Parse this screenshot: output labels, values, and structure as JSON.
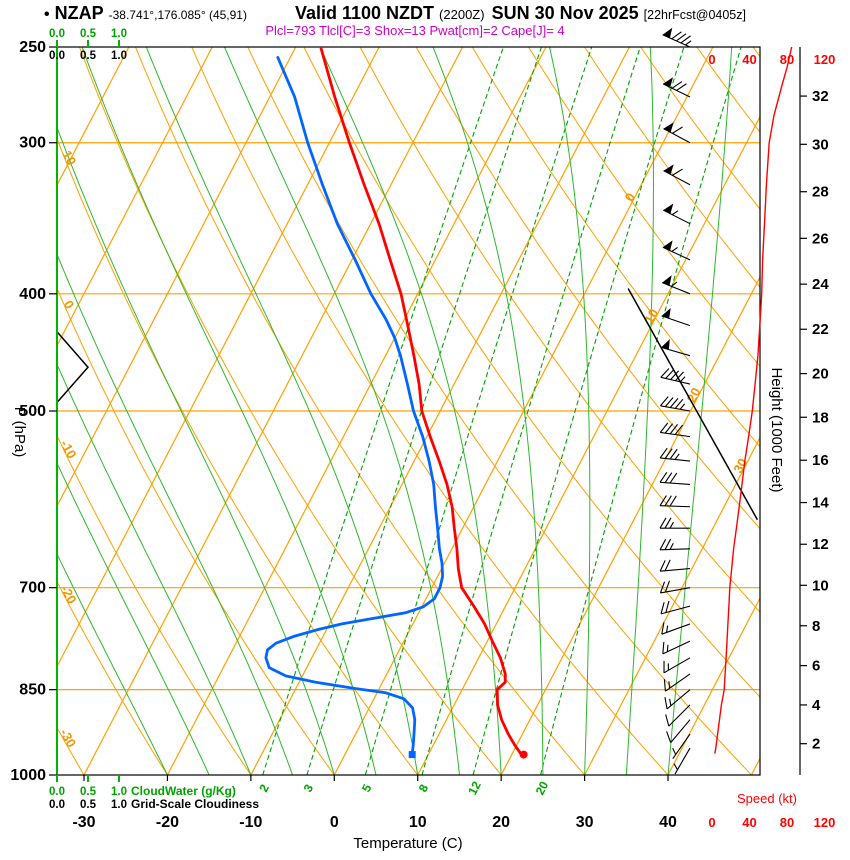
{
  "header": {
    "bullet": "•",
    "station": "NZAP",
    "coords": "-38.741°,176.085° (45,91)",
    "valid": "Valid 1100 NZDT",
    "valid_zulu": "(2200Z)",
    "valid_date": "SUN 30 Nov 2025",
    "fcst": "[22hrFcst@0405z]",
    "params": "Plcl=793 Tlcl[C]=3 Shox=13 Pwat[cm]=2 Cape[J]= 4"
  },
  "colors": {
    "grid_orange": "#ffa000",
    "green": "#00a300",
    "bright_green": "#00b400",
    "red": "#ff0000",
    "blue": "#0066ff",
    "magenta": "#cc00cc",
    "black": "#000000"
  },
  "chart_data": {
    "type": "line",
    "subtype": "skew-t log-p sounding",
    "axes": {
      "pressure": {
        "label": "P (hPa)",
        "scale": "log",
        "range": [
          250,
          1000
        ],
        "ticks": [
          250,
          300,
          400,
          500,
          700,
          850,
          1000
        ]
      },
      "temperature": {
        "label": "Temperature (C)",
        "unit": "C",
        "ticks": [
          -30,
          -20,
          -10,
          0,
          10,
          20,
          30,
          40
        ]
      },
      "height": {
        "label": "Height (1000 Feet)",
        "ticks": [
          2,
          4,
          6,
          8,
          10,
          12,
          14,
          16,
          18,
          20,
          22,
          24,
          26,
          28,
          30,
          32
        ]
      },
      "speed": {
        "label": "Speed (kt)",
        "ticks": [
          0,
          40,
          80,
          120
        ]
      },
      "cloudwater": {
        "label": "CloudWater (g/Kg)",
        "ticks": [
          "0.0",
          "0.5",
          "1.0"
        ]
      },
      "cloudiness": {
        "label": "Grid-Scale Cloudiness",
        "ticks": [
          "0.0",
          "0.5",
          "1.0"
        ]
      }
    },
    "grid": {
      "isobar_lines": [
        300,
        400,
        500,
        700,
        850
      ],
      "isotherm_step": 10,
      "isotherm_range": [
        -80,
        50
      ],
      "dry_adiabat_step": 10,
      "dry_adiabat_range": [
        -40,
        140
      ],
      "moist_adiabat_step": 5,
      "moist_adiabat_range": [
        -20,
        40
      ],
      "mixing_ratio_values": [
        2,
        3,
        5,
        8,
        12,
        20
      ],
      "isotherm_labels": [
        {
          "label": "0",
          "t": 0,
          "p": 334
        },
        {
          "label": "10",
          "t": 10,
          "p": 419
        },
        {
          "label": "20",
          "t": 20,
          "p": 487
        },
        {
          "label": "30",
          "t": 30,
          "p": 557
        }
      ],
      "dry_adiabat_labels": [
        {
          "label": "10",
          "theta": 10
        },
        {
          "label": "0",
          "theta": 0
        },
        {
          "label": "-10",
          "theta": -10
        },
        {
          "label": "-20",
          "theta": -20
        },
        {
          "label": "-30",
          "theta": -30
        }
      ]
    },
    "series": {
      "temperature": {
        "name": "Temperature",
        "color": "#ff0000",
        "points": [
          [
            960,
            21
          ],
          [
            945,
            19.8
          ],
          [
            925,
            18.3
          ],
          [
            900,
            16.6
          ],
          [
            875,
            15.2
          ],
          [
            850,
            14.2
          ],
          [
            838,
            14.7
          ],
          [
            825,
            14.2
          ],
          [
            800,
            12.6
          ],
          [
            775,
            10.6
          ],
          [
            750,
            8.6
          ],
          [
            725,
            6.2
          ],
          [
            700,
            3.6
          ],
          [
            675,
            2.0
          ],
          [
            650,
            0.6
          ],
          [
            625,
            -1.0
          ],
          [
            600,
            -2.6
          ],
          [
            575,
            -4.6
          ],
          [
            550,
            -7.0
          ],
          [
            525,
            -9.6
          ],
          [
            500,
            -12.2
          ],
          [
            475,
            -14.2
          ],
          [
            450,
            -16.6
          ],
          [
            425,
            -19.2
          ],
          [
            400,
            -22.0
          ],
          [
            375,
            -25.4
          ],
          [
            350,
            -29.0
          ],
          [
            325,
            -33.2
          ],
          [
            300,
            -37.6
          ],
          [
            275,
            -42.2
          ],
          [
            250,
            -47.0
          ]
        ]
      },
      "dewpoint": {
        "name": "Dewpoint",
        "color": "#0066ff",
        "points": [
          [
            960,
            8
          ],
          [
            945,
            7.6
          ],
          [
            925,
            7.0
          ],
          [
            900,
            6.2
          ],
          [
            880,
            5.2
          ],
          [
            865,
            3.6
          ],
          [
            855,
            1.0
          ],
          [
            848,
            -3.0
          ],
          [
            838,
            -8.0
          ],
          [
            828,
            -12.0
          ],
          [
            815,
            -14.5
          ],
          [
            800,
            -15.5
          ],
          [
            788,
            -15.8
          ],
          [
            778,
            -15.2
          ],
          [
            768,
            -13.5
          ],
          [
            758,
            -11.0
          ],
          [
            750,
            -8.5
          ],
          [
            742,
            -5.0
          ],
          [
            734,
            -1.5
          ],
          [
            726,
            0.2
          ],
          [
            715,
            1.0
          ],
          [
            700,
            1.0
          ],
          [
            685,
            0.6
          ],
          [
            668,
            -0.3
          ],
          [
            650,
            -1.5
          ],
          [
            625,
            -3.0
          ],
          [
            600,
            -4.6
          ],
          [
            575,
            -6.2
          ],
          [
            550,
            -8.2
          ],
          [
            525,
            -10.5
          ],
          [
            500,
            -13.2
          ],
          [
            475,
            -15.6
          ],
          [
            450,
            -18.2
          ],
          [
            435,
            -20.0
          ],
          [
            420,
            -22.2
          ],
          [
            400,
            -25.6
          ],
          [
            375,
            -29.6
          ],
          [
            350,
            -34.0
          ],
          [
            325,
            -38.2
          ],
          [
            300,
            -42.6
          ],
          [
            275,
            -47.0
          ],
          [
            255,
            -51.5
          ]
        ]
      },
      "wind_speed": {
        "name": "Speed",
        "color": "#ff0000",
        "unit": "kt",
        "points": [
          [
            960,
            3
          ],
          [
            950,
            4
          ],
          [
            925,
            6
          ],
          [
            900,
            8
          ],
          [
            875,
            10
          ],
          [
            850,
            13
          ],
          [
            825,
            14
          ],
          [
            800,
            15
          ],
          [
            775,
            16
          ],
          [
            750,
            17
          ],
          [
            725,
            18
          ],
          [
            700,
            19
          ],
          [
            675,
            21
          ],
          [
            650,
            23
          ],
          [
            625,
            26
          ],
          [
            600,
            29
          ],
          [
            575,
            32
          ],
          [
            550,
            35
          ],
          [
            525,
            39
          ],
          [
            500,
            43
          ],
          [
            475,
            46
          ],
          [
            450,
            49
          ],
          [
            425,
            51
          ],
          [
            400,
            53
          ],
          [
            375,
            54
          ],
          [
            350,
            56
          ],
          [
            325,
            58
          ],
          [
            300,
            61
          ],
          [
            285,
            66
          ],
          [
            270,
            74
          ],
          [
            260,
            80
          ],
          [
            250,
            85
          ]
        ]
      },
      "cloudiness": {
        "name": "Grid-Scale Cloudiness",
        "color": "#000000",
        "points": [
          [
            492,
            0
          ],
          [
            460,
            0.5
          ],
          [
            430,
            0
          ]
        ]
      },
      "boundary_line": {
        "name": "diagonal reference line",
        "color": "#000000",
        "points_pt": [
          [
            396,
            4.9
          ],
          [
            615,
            34.8
          ]
        ]
      }
    },
    "surface_markers": {
      "temperature": {
        "p": 960,
        "t": 21
      },
      "dewpoint": {
        "p": 960,
        "t": 8
      }
    },
    "wind_barbs": [
      [
        950,
        210,
        5
      ],
      [
        925,
        215,
        7
      ],
      [
        900,
        220,
        10
      ],
      [
        875,
        225,
        10
      ],
      [
        850,
        230,
        15
      ],
      [
        825,
        235,
        15
      ],
      [
        800,
        240,
        15
      ],
      [
        775,
        245,
        15
      ],
      [
        750,
        250,
        15
      ],
      [
        725,
        255,
        20
      ],
      [
        700,
        260,
        20
      ],
      [
        675,
        265,
        20
      ],
      [
        650,
        268,
        25
      ],
      [
        625,
        270,
        25
      ],
      [
        600,
        272,
        30
      ],
      [
        575,
        274,
        30
      ],
      [
        550,
        276,
        35
      ],
      [
        525,
        278,
        40
      ],
      [
        500,
        280,
        45
      ],
      [
        475,
        283,
        45
      ],
      [
        450,
        286,
        50
      ],
      [
        425,
        289,
        50
      ],
      [
        400,
        292,
        55
      ],
      [
        375,
        295,
        55
      ],
      [
        350,
        297,
        55
      ],
      [
        325,
        298,
        60
      ],
      [
        300,
        298,
        60
      ],
      [
        275,
        296,
        70
      ],
      [
        250,
        294,
        85
      ]
    ]
  }
}
